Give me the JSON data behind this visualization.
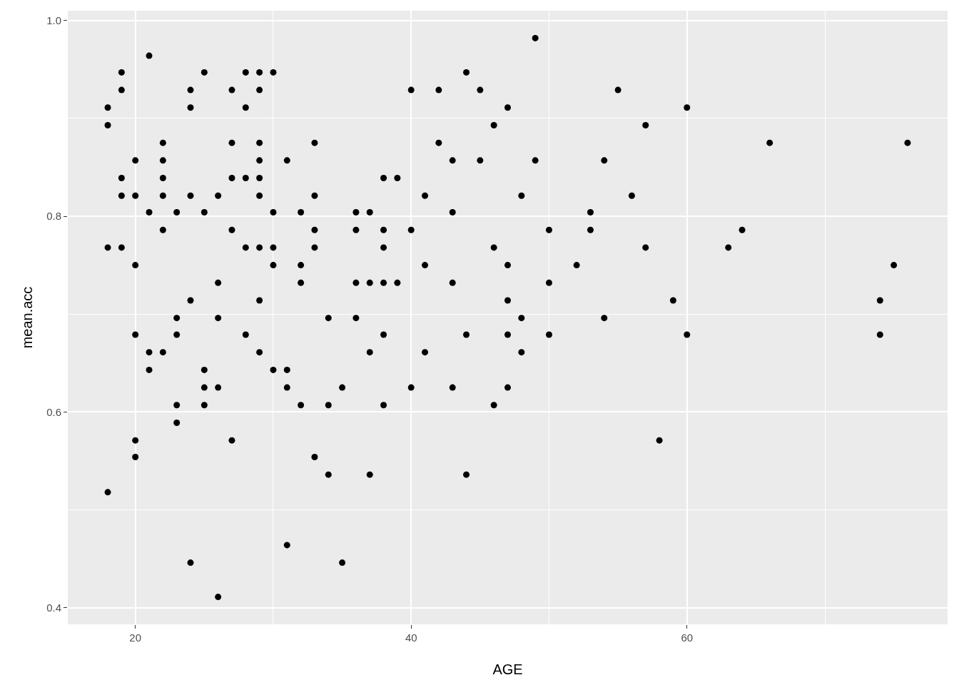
{
  "chart_data": {
    "type": "scatter",
    "xlabel": "AGE",
    "ylabel": "mean.acc",
    "color": "#000000",
    "marker": "circle",
    "grid": true,
    "x": [
      18,
      18,
      18,
      18,
      19,
      19,
      19,
      19,
      19,
      20,
      20,
      20,
      20,
      20,
      20,
      21,
      21,
      21,
      21,
      22,
      22,
      22,
      22,
      22,
      22,
      23,
      23,
      23,
      23,
      23,
      24,
      24,
      24,
      24,
      24,
      25,
      25,
      25,
      25,
      25,
      26,
      26,
      26,
      26,
      26,
      27,
      27,
      27,
      27,
      27,
      28,
      28,
      28,
      28,
      28,
      29,
      29,
      29,
      29,
      29,
      29,
      29,
      29,
      29,
      30,
      30,
      30,
      30,
      30,
      31,
      31,
      31,
      31,
      32,
      32,
      32,
      32,
      33,
      33,
      33,
      33,
      33,
      34,
      34,
      34,
      35,
      35,
      36,
      36,
      36,
      36,
      37,
      37,
      37,
      37,
      38,
      38,
      38,
      38,
      38,
      38,
      39,
      39,
      40,
      40,
      40,
      41,
      41,
      41,
      42,
      42,
      43,
      43,
      43,
      43,
      44,
      44,
      44,
      45,
      45,
      46,
      46,
      46,
      47,
      47,
      47,
      47,
      47,
      48,
      48,
      48,
      49,
      49,
      50,
      50,
      50,
      52,
      53,
      53,
      54,
      54,
      55,
      56,
      57,
      57,
      58,
      59,
      60,
      60,
      63,
      64,
      66,
      74,
      74,
      75,
      76
    ],
    "values": [
      0.911,
      0.893,
      0.768,
      0.518,
      0.947,
      0.929,
      0.839,
      0.821,
      0.768,
      0.857,
      0.821,
      0.75,
      0.679,
      0.571,
      0.554,
      0.964,
      0.804,
      0.661,
      0.643,
      0.875,
      0.857,
      0.839,
      0.821,
      0.786,
      0.661,
      0.804,
      0.696,
      0.679,
      0.607,
      0.589,
      0.929,
      0.911,
      0.821,
      0.714,
      0.446,
      0.947,
      0.804,
      0.643,
      0.625,
      0.607,
      0.821,
      0.732,
      0.696,
      0.625,
      0.411,
      0.929,
      0.875,
      0.839,
      0.786,
      0.571,
      0.947,
      0.911,
      0.839,
      0.768,
      0.679,
      0.947,
      0.929,
      0.875,
      0.857,
      0.839,
      0.821,
      0.768,
      0.714,
      0.661,
      0.947,
      0.804,
      0.768,
      0.75,
      0.643,
      0.857,
      0.643,
      0.625,
      0.464,
      0.804,
      0.75,
      0.732,
      0.607,
      0.875,
      0.821,
      0.786,
      0.768,
      0.554,
      0.696,
      0.607,
      0.536,
      0.625,
      0.446,
      0.804,
      0.786,
      0.732,
      0.696,
      0.804,
      0.732,
      0.661,
      0.536,
      0.839,
      0.786,
      0.768,
      0.732,
      0.679,
      0.607,
      0.839,
      0.732,
      0.929,
      0.786,
      0.625,
      0.821,
      0.75,
      0.661,
      0.929,
      0.875,
      0.857,
      0.804,
      0.732,
      0.625,
      0.947,
      0.679,
      0.536,
      0.929,
      0.857,
      0.893,
      0.768,
      0.607,
      0.911,
      0.75,
      0.714,
      0.679,
      0.625,
      0.821,
      0.696,
      0.661,
      0.982,
      0.857,
      0.786,
      0.732,
      0.679,
      0.75,
      0.804,
      0.786,
      0.857,
      0.696,
      0.929,
      0.821,
      0.893,
      0.768,
      0.571,
      0.714,
      0.911,
      0.679,
      0.768,
      0.786,
      0.875,
      0.714,
      0.679,
      0.75,
      0.875
    ],
    "xlim": [
      15.1,
      78.9
    ],
    "ylim": [
      0.383,
      1.01
    ],
    "xticks": [
      20,
      40,
      60
    ],
    "yticks": [
      0.4,
      0.6,
      0.8,
      {
        "value": 1,
        "label": "1.0"
      }
    ]
  }
}
